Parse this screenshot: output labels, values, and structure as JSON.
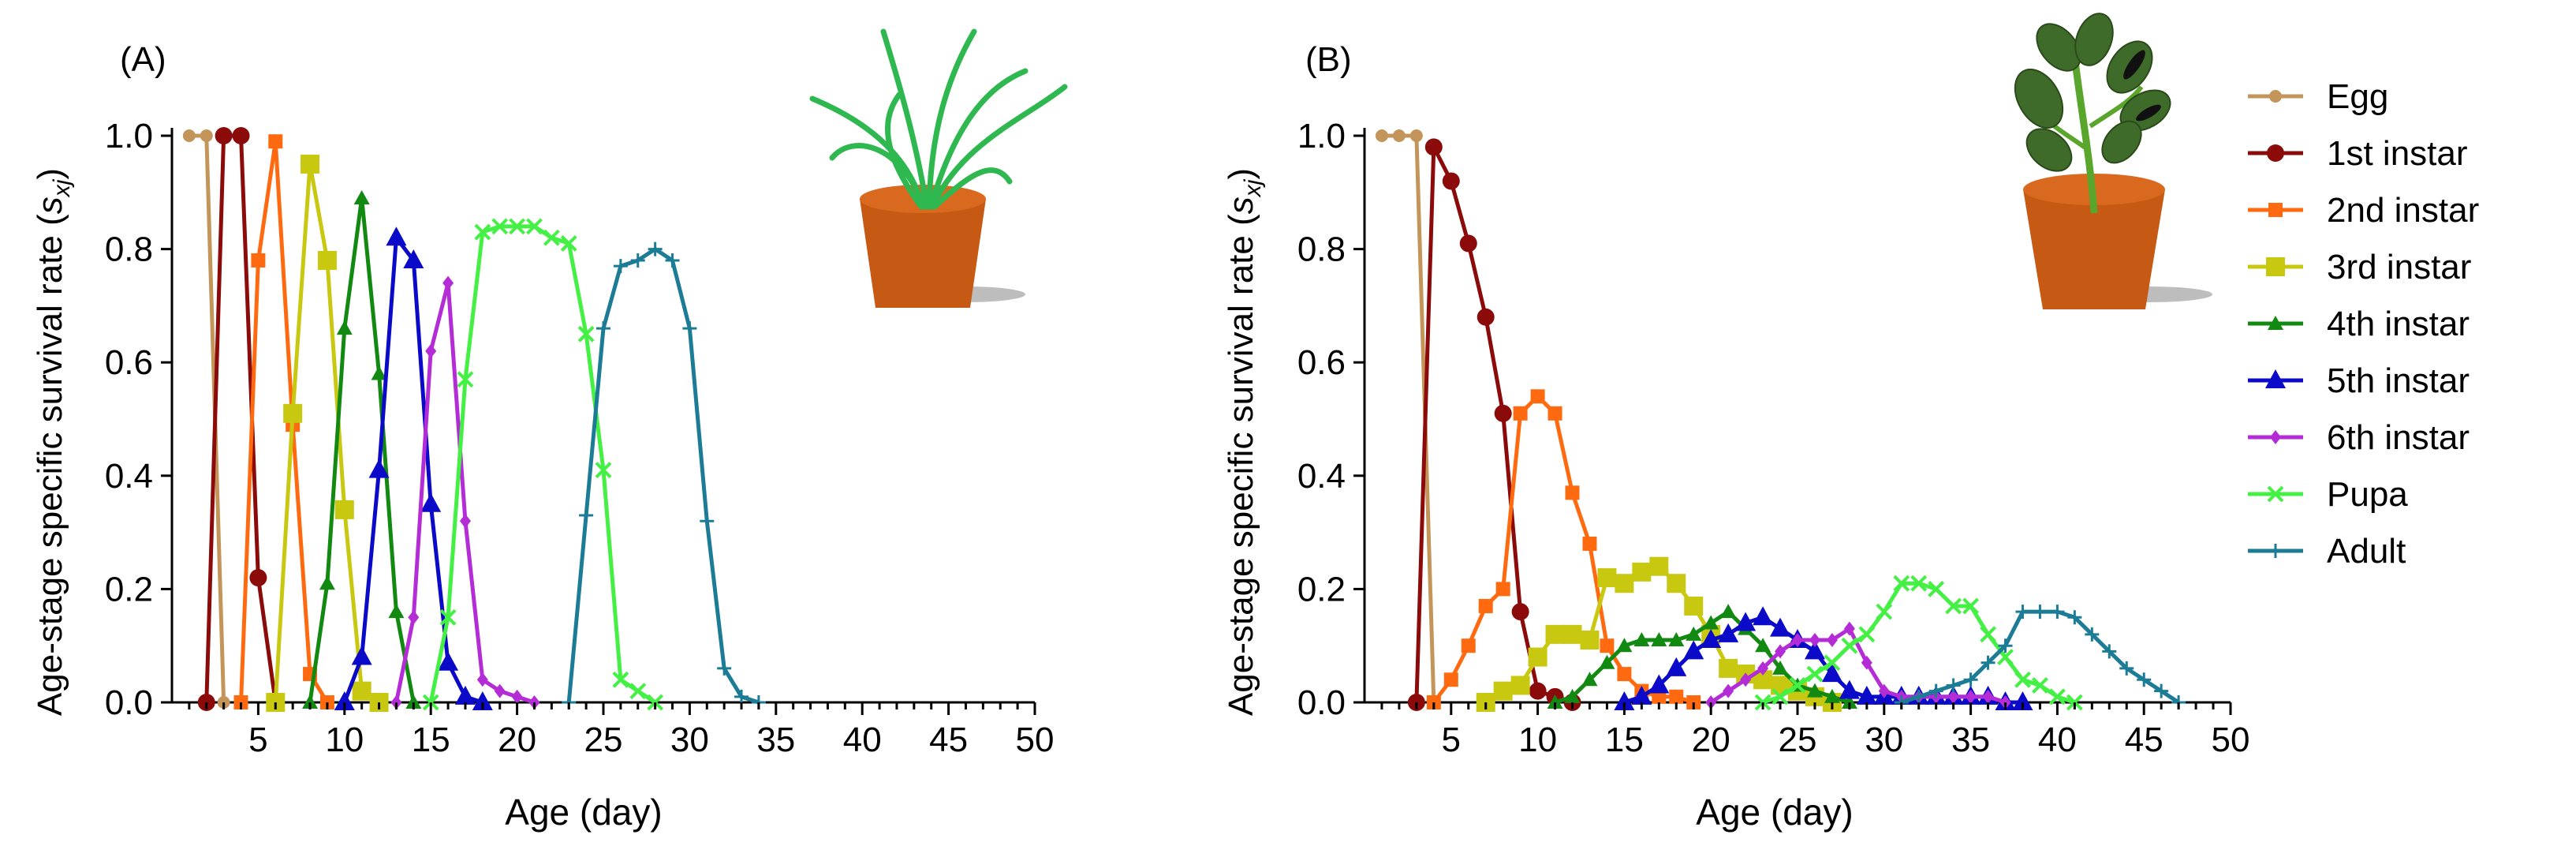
{
  "stage_colors": {
    "Egg": "#C4955A",
    "1st instar": "#8B0A0A",
    "2nd instar": "#FF6A10",
    "3rd instar": "#C8C810",
    "4th instar": "#128A12",
    "5th instar": "#0A0AC8",
    "6th instar": "#B42CD6",
    "Pupa": "#44F044",
    "Adult": "#1C7C96"
  },
  "legend": [
    "Egg",
    "1st instar",
    "2nd instar",
    "3rd instar",
    "4th instar",
    "5th instar",
    "6th instar",
    "Pupa",
    "Adult"
  ],
  "chart_data": [
    {
      "panel_label": "(A)",
      "type": "line",
      "xlabel": "Age (day)",
      "ylabel_main": "Age-stage specific survival rate (",
      "ylabel_symbol": "s",
      "ylabel_subscript": "xj",
      "ylabel_close": ")",
      "xlim": [
        0,
        50
      ],
      "ylim": [
        0,
        1.0
      ],
      "xticks": [
        "5",
        "10",
        "15",
        "20",
        "25",
        "30",
        "35",
        "40",
        "45",
        "50"
      ],
      "yticks": [
        "0.0",
        "0.2",
        "0.4",
        "0.6",
        "0.8",
        "1.0"
      ],
      "image": "grass-pot",
      "series": [
        {
          "name": "Egg",
          "x": [
            1,
            2,
            3
          ],
          "y": [
            1.0,
            1.0,
            0.0
          ]
        },
        {
          "name": "1st instar",
          "x": [
            2,
            3,
            4,
            5,
            6
          ],
          "y": [
            0.0,
            1.0,
            1.0,
            0.22,
            0.0
          ]
        },
        {
          "name": "2nd instar",
          "x": [
            4,
            5,
            6,
            7,
            8,
            9
          ],
          "y": [
            0.0,
            0.78,
            0.99,
            0.49,
            0.05,
            0.0
          ]
        },
        {
          "name": "3rd instar",
          "x": [
            6,
            7,
            8,
            9,
            10,
            11,
            12
          ],
          "y": [
            0.0,
            0.51,
            0.95,
            0.78,
            0.34,
            0.02,
            0.0
          ]
        },
        {
          "name": "4th instar",
          "x": [
            8,
            9,
            10,
            11,
            12,
            13,
            14
          ],
          "y": [
            0.0,
            0.21,
            0.66,
            0.89,
            0.58,
            0.16,
            0.0
          ]
        },
        {
          "name": "5th instar",
          "x": [
            10,
            11,
            12,
            13,
            14,
            15,
            16,
            17,
            18
          ],
          "y": [
            0.0,
            0.08,
            0.41,
            0.82,
            0.78,
            0.35,
            0.07,
            0.01,
            0.0
          ]
        },
        {
          "name": "6th instar",
          "x": [
            13,
            14,
            15,
            16,
            17,
            18,
            19,
            20,
            21
          ],
          "y": [
            0.0,
            0.15,
            0.62,
            0.74,
            0.32,
            0.04,
            0.02,
            0.01,
            0.0
          ]
        },
        {
          "name": "Pupa",
          "x": [
            15,
            16,
            17,
            18,
            19,
            20,
            21,
            22,
            23,
            24,
            25,
            26,
            27,
            28
          ],
          "y": [
            0.0,
            0.15,
            0.57,
            0.83,
            0.84,
            0.84,
            0.84,
            0.82,
            0.81,
            0.65,
            0.41,
            0.04,
            0.02,
            0.0
          ]
        },
        {
          "name": "Adult",
          "x": [
            23,
            24,
            25,
            26,
            27,
            28,
            29,
            30,
            31,
            32,
            33,
            34
          ],
          "y": [
            0.0,
            0.33,
            0.66,
            0.77,
            0.78,
            0.8,
            0.78,
            0.66,
            0.32,
            0.06,
            0.01,
            0.0
          ]
        }
      ]
    },
    {
      "panel_label": "(B)",
      "type": "line",
      "xlabel": "Age (day)",
      "ylabel_main": "Age-stage specific survival rate (",
      "ylabel_symbol": "s",
      "ylabel_subscript": "xj",
      "ylabel_close": ")",
      "xlim": [
        0,
        50
      ],
      "ylim": [
        0,
        1.0
      ],
      "xticks": [
        "5",
        "10",
        "15",
        "20",
        "25",
        "30",
        "35",
        "40",
        "45",
        "50"
      ],
      "yticks": [
        "0.0",
        "0.2",
        "0.4",
        "0.6",
        "0.8",
        "1.0"
      ],
      "image": "soybean-pot",
      "series": [
        {
          "name": "Egg",
          "x": [
            1,
            2,
            3,
            4
          ],
          "y": [
            1.0,
            1.0,
            1.0,
            0.0
          ]
        },
        {
          "name": "1st instar",
          "x": [
            3,
            4,
            5,
            6,
            7,
            8,
            9,
            10,
            11,
            12
          ],
          "y": [
            0.0,
            0.98,
            0.92,
            0.81,
            0.68,
            0.51,
            0.16,
            0.02,
            0.01,
            0.0
          ]
        },
        {
          "name": "2nd instar",
          "x": [
            4,
            5,
            6,
            7,
            8,
            9,
            10,
            11,
            12,
            13,
            14,
            15,
            16,
            17,
            18,
            19
          ],
          "y": [
            0.0,
            0.04,
            0.1,
            0.17,
            0.2,
            0.51,
            0.54,
            0.51,
            0.37,
            0.28,
            0.1,
            0.05,
            0.02,
            0.01,
            0.01,
            0.0
          ]
        },
        {
          "name": "3rd instar",
          "x": [
            7,
            8,
            9,
            10,
            11,
            12,
            13,
            14,
            15,
            16,
            17,
            18,
            19,
            20,
            21,
            22,
            23,
            24,
            25,
            26,
            27
          ],
          "y": [
            0.0,
            0.02,
            0.03,
            0.08,
            0.12,
            0.12,
            0.11,
            0.22,
            0.21,
            0.23,
            0.24,
            0.21,
            0.17,
            0.12,
            0.06,
            0.05,
            0.04,
            0.03,
            0.02,
            0.01,
            0.0
          ]
        },
        {
          "name": "4th instar",
          "x": [
            11,
            12,
            13,
            14,
            15,
            16,
            17,
            18,
            19,
            20,
            21,
            22,
            23,
            24,
            25,
            26,
            27,
            28
          ],
          "y": [
            0.0,
            0.01,
            0.04,
            0.07,
            0.1,
            0.11,
            0.11,
            0.11,
            0.12,
            0.14,
            0.16,
            0.13,
            0.1,
            0.06,
            0.03,
            0.02,
            0.01,
            0.0
          ]
        },
        {
          "name": "5th instar",
          "x": [
            15,
            16,
            17,
            18,
            19,
            20,
            21,
            22,
            23,
            24,
            25,
            26,
            27,
            28,
            29,
            30,
            31,
            32,
            33,
            34,
            35,
            36,
            37,
            38
          ],
          "y": [
            0.0,
            0.01,
            0.03,
            0.06,
            0.09,
            0.11,
            0.12,
            0.14,
            0.15,
            0.13,
            0.11,
            0.09,
            0.05,
            0.02,
            0.01,
            0.01,
            0.01,
            0.01,
            0.01,
            0.01,
            0.01,
            0.01,
            0.0,
            0.0
          ]
        },
        {
          "name": "6th instar",
          "x": [
            20,
            21,
            22,
            23,
            24,
            25,
            26,
            27,
            28,
            29,
            30,
            31,
            32,
            33,
            34,
            35,
            36,
            37
          ],
          "y": [
            0.0,
            0.02,
            0.04,
            0.06,
            0.09,
            0.11,
            0.11,
            0.11,
            0.13,
            0.07,
            0.02,
            0.01,
            0.01,
            0.01,
            0.01,
            0.01,
            0.01,
            0.0
          ]
        },
        {
          "name": "Pupa",
          "x": [
            23,
            24,
            25,
            26,
            27,
            28,
            29,
            30,
            31,
            32,
            33,
            34,
            35,
            36,
            37,
            38,
            39,
            40,
            41
          ],
          "y": [
            0.0,
            0.01,
            0.03,
            0.05,
            0.07,
            0.1,
            0.12,
            0.16,
            0.21,
            0.21,
            0.2,
            0.17,
            0.17,
            0.12,
            0.08,
            0.04,
            0.03,
            0.01,
            0.0
          ]
        },
        {
          "name": "Adult",
          "x": [
            31,
            32,
            33,
            34,
            35,
            36,
            37,
            38,
            39,
            40,
            41,
            42,
            43,
            44,
            45,
            46,
            47
          ],
          "y": [
            0.0,
            0.01,
            0.02,
            0.03,
            0.04,
            0.07,
            0.1,
            0.16,
            0.16,
            0.16,
            0.15,
            0.12,
            0.09,
            0.06,
            0.04,
            0.02,
            0.0
          ]
        }
      ]
    }
  ]
}
